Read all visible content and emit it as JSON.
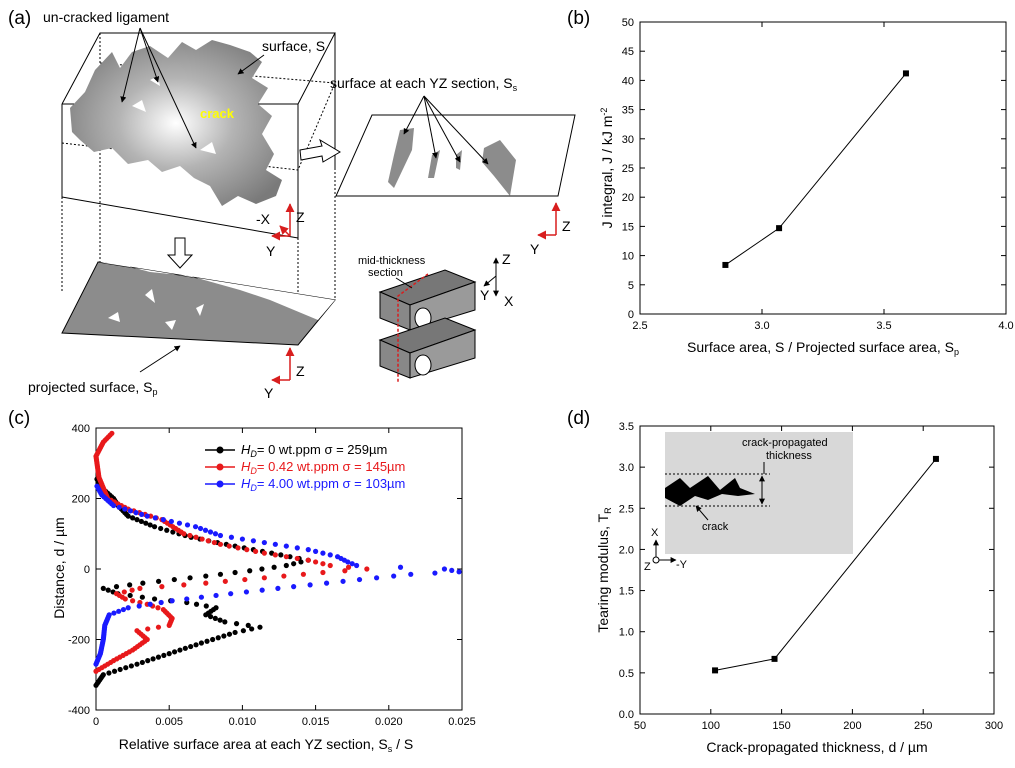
{
  "panels": {
    "a": {
      "label": "(a)",
      "uncracked": "un-cracked ligament",
      "surface": "surface, S",
      "crack": "crack",
      "section_surface": "surface at each YZ section, S",
      "section_surface_sub": "s",
      "projected": "projected surface, S",
      "projected_sub": "p",
      "mid_thickness": "mid-thickness",
      "section": "section",
      "axis_x": "X",
      "axis_neg_x": "-X",
      "axis_y": "Y",
      "axis_z": "Z"
    },
    "b": {
      "label": "(b)"
    },
    "c": {
      "label": "(c)"
    },
    "d": {
      "label": "(d)",
      "inset_title1": "crack-propagated",
      "inset_title2": "thickness",
      "inset_crack": "crack",
      "inset_x": "X",
      "inset_z": "Z",
      "inset_negy": "-Y"
    }
  },
  "colors": {
    "black_series": "#000000",
    "red_series": "#e8191b",
    "blue_series": "#1a1aff",
    "axis_red": "#d81e1e",
    "inset_bg": "#d8d8d8",
    "feature_gray": "#8c8c8c"
  },
  "chart_data": [
    {
      "id": "b",
      "type": "line",
      "title": "",
      "xlabel": "Surface area, S / Projected surface area, S",
      "xlabel_sub": "p",
      "ylabel": "J integral, J / kJ m",
      "ylabel_sup": "-2",
      "xlim": [
        2.5,
        4.0
      ],
      "ylim": [
        0,
        50
      ],
      "xticks": [
        "2.5",
        "3.0",
        "3.5",
        "4.0"
      ],
      "yticks": [
        "0",
        "5",
        "10",
        "15",
        "20",
        "25",
        "30",
        "35",
        "40",
        "45",
        "50"
      ],
      "grid": false,
      "series": [
        {
          "x": [
            2.85,
            3.07,
            3.59
          ],
          "y": [
            8.4,
            14.7,
            41.2
          ]
        }
      ]
    },
    {
      "id": "c",
      "type": "scatter",
      "title": "",
      "xlabel": "Relative surface area at each YZ section, S",
      "xlabel_sub": "s",
      "xlabel_tail": " / S",
      "ylabel": "Distance, d / µm",
      "xlim": [
        0,
        0.025
      ],
      "ylim": [
        -400,
        400
      ],
      "xticks": [
        "0",
        "0.005",
        "0.010",
        "0.015",
        "0.020",
        "0.025"
      ],
      "yticks": [
        "-400",
        "-200",
        "0",
        "200",
        "400"
      ],
      "grid": false,
      "legend_position": "top-right",
      "series": [
        {
          "name_var": "H",
          "name_sub": "D",
          "name_text": "= 0 wt.ppm σ = 259µm",
          "color": "#000000",
          "profile": [
            [
              -330,
              0
            ],
            [
              -300,
              0.0005
            ],
            [
              -270,
              0.0028
            ],
            [
              -240,
              0.005
            ],
            [
              -210,
              0.0072
            ],
            [
              -180,
              0.0095
            ],
            [
              -165,
              0.0112
            ],
            [
              -150,
              0.0088
            ],
            [
              -130,
              0.0075
            ],
            [
              -110,
              0.0082
            ],
            [
              -95,
              0.0062
            ],
            [
              -85,
              0.004
            ],
            [
              -70,
              0.0015
            ],
            [
              -55,
              0.0005
            ],
            [
              -40,
              0.0032
            ],
            [
              -20,
              0.0075
            ],
            [
              -5,
              0.0105
            ],
            [
              10,
              0.013
            ],
            [
              25,
              0.0145
            ],
            [
              45,
              0.012
            ],
            [
              65,
              0.0095
            ],
            [
              90,
              0.0065
            ],
            [
              120,
              0.004
            ],
            [
              150,
              0.0022
            ],
            [
              180,
              0.0015
            ],
            [
              200,
              0.0012
            ],
            [
              230,
              0.0004
            ],
            [
              260,
              0
            ]
          ]
        },
        {
          "name_var": "H",
          "name_sub": "D",
          "name_text": "= 0.42 wt.ppm σ = 145µm",
          "color": "#e8191b",
          "profile": [
            [
              -290,
              0
            ],
            [
              -260,
              0.0012
            ],
            [
              -230,
              0.0025
            ],
            [
              -200,
              0.0035
            ],
            [
              -175,
              0.0028
            ],
            [
              -160,
              0.005
            ],
            [
              -140,
              0.0052
            ],
            [
              -115,
              0.0046
            ],
            [
              -100,
              0.0035
            ],
            [
              -85,
              0.002
            ],
            [
              -70,
              0.0014
            ],
            [
              -55,
              0.003
            ],
            [
              -40,
              0.0075
            ],
            [
              -25,
              0.0115
            ],
            [
              -10,
              0.0155
            ],
            [
              0,
              0.0185
            ],
            [
              10,
              0.016
            ],
            [
              25,
              0.0145
            ],
            [
              45,
              0.0115
            ],
            [
              70,
              0.0085
            ],
            [
              100,
              0.006
            ],
            [
              140,
              0.0045
            ],
            [
              170,
              0.0022
            ],
            [
              200,
              0.0008
            ],
            [
              260,
              0.0002
            ],
            [
              320,
              0
            ],
            [
              360,
              0.0005
            ],
            [
              390,
              0.0012
            ]
          ]
        },
        {
          "name_var": "H",
          "name_sub": "D",
          "name_text": "= 4.00 wt.ppm σ = 103µm",
          "color": "#1a1aff",
          "profile": [
            [
              -270,
              0
            ],
            [
              -240,
              0.0003
            ],
            [
              -200,
              0.0005
            ],
            [
              -160,
              0.0006
            ],
            [
              -130,
              0.0009
            ],
            [
              -110,
              0.0022
            ],
            [
              -90,
              0.0052
            ],
            [
              -70,
              0.0092
            ],
            [
              -50,
              0.0135
            ],
            [
              -30,
              0.018
            ],
            [
              -15,
              0.0215
            ],
            [
              -8,
              0.0248
            ],
            [
              0,
              0.0238
            ],
            [
              10,
              0.0178
            ],
            [
              20,
              0.0172
            ],
            [
              35,
              0.0165
            ],
            [
              55,
              0.0145
            ],
            [
              75,
              0.0115
            ],
            [
              95,
              0.0085
            ],
            [
              120,
              0.0068
            ],
            [
              150,
              0.0035
            ],
            [
              180,
              0.0012
            ],
            [
              210,
              0.0004
            ],
            [
              240,
              0
            ]
          ]
        }
      ]
    },
    {
      "id": "d",
      "type": "line",
      "title": "",
      "xlabel": "Crack-propagated thickness, d / µm",
      "ylabel": "Tearing modulus, T",
      "ylabel_sub": "R",
      "xlim": [
        50,
        300
      ],
      "ylim": [
        0,
        3.5
      ],
      "xticks": [
        "50",
        "100",
        "150",
        "200",
        "250",
        "300"
      ],
      "yticks": [
        "0.0",
        "0.5",
        "1.0",
        "1.5",
        "2.0",
        "2.5",
        "3.0",
        "3.5"
      ],
      "grid": false,
      "series": [
        {
          "x": [
            103,
            145,
            259
          ],
          "y": [
            0.53,
            0.67,
            3.1
          ]
        }
      ]
    }
  ]
}
